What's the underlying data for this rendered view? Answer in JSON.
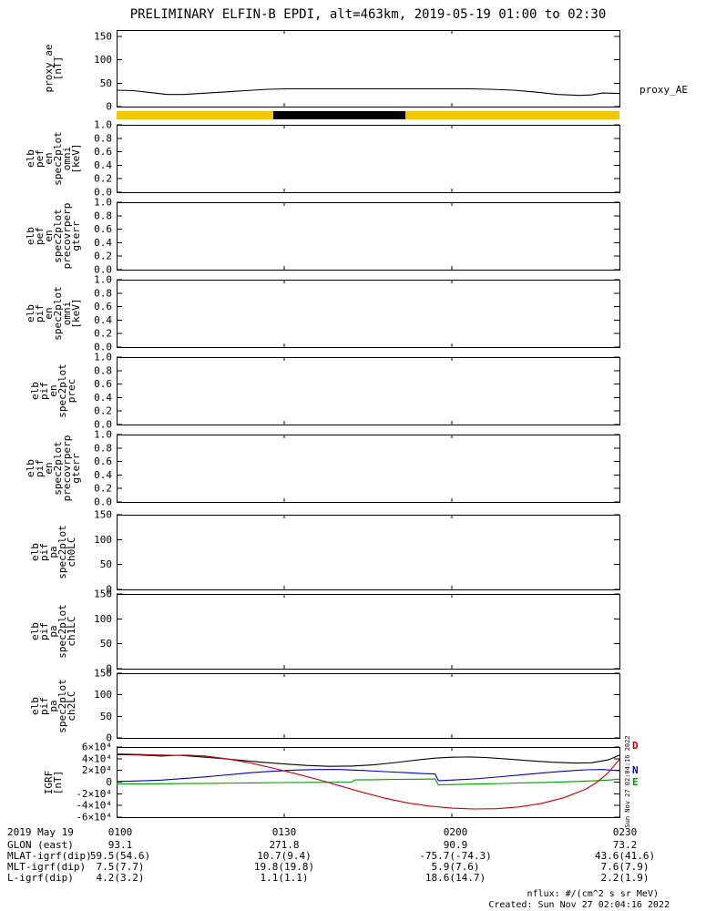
{
  "title": "PRELIMINARY ELFIN-B EPDI, alt=463km, 2019-05-19 01:00 to 02:30",
  "panels": [
    {
      "id": "proxy_ae",
      "label_lines": [
        "proxy_ae",
        "[nT]"
      ],
      "right_label": "proxy_AE",
      "yticks": [
        {
          "v": 150,
          "t": "150"
        },
        {
          "v": 100,
          "t": "100"
        },
        {
          "v": 50,
          "t": "50"
        },
        {
          "v": 0,
          "t": "0"
        }
      ]
    },
    {
      "id": "pef_omni",
      "label_lines": [
        "elb",
        "pef",
        "en",
        "spec2plot",
        "omni",
        "[keV]"
      ],
      "yticks": [
        {
          "v": 1.0,
          "t": "1.0"
        },
        {
          "v": 0.8,
          "t": "0.8"
        },
        {
          "v": 0.6,
          "t": "0.6"
        },
        {
          "v": 0.4,
          "t": "0.4"
        },
        {
          "v": 0.2,
          "t": "0.2"
        },
        {
          "v": 0.0,
          "t": "0.0"
        }
      ]
    },
    {
      "id": "pef_gterr",
      "label_lines": [
        "elb",
        "pef",
        "en",
        "spec2plot",
        "precovrperp",
        "gterr"
      ],
      "yticks": [
        {
          "v": 1.0,
          "t": "1.0"
        },
        {
          "v": 0.8,
          "t": "0.8"
        },
        {
          "v": 0.6,
          "t": "0.6"
        },
        {
          "v": 0.4,
          "t": "0.4"
        },
        {
          "v": 0.2,
          "t": "0.2"
        },
        {
          "v": 0.0,
          "t": "0.0"
        }
      ]
    },
    {
      "id": "pif_omni",
      "label_lines": [
        "elb",
        "pif",
        "en",
        "spec2plot",
        "omni",
        "[keV]"
      ],
      "yticks": [
        {
          "v": 1.0,
          "t": "1.0"
        },
        {
          "v": 0.8,
          "t": "0.8"
        },
        {
          "v": 0.6,
          "t": "0.6"
        },
        {
          "v": 0.4,
          "t": "0.4"
        },
        {
          "v": 0.2,
          "t": "0.2"
        },
        {
          "v": 0.0,
          "t": "0.0"
        }
      ]
    },
    {
      "id": "pif_prec",
      "label_lines": [
        "elb",
        "pif",
        "en",
        "spec2plot",
        "prec"
      ],
      "yticks": [
        {
          "v": 1.0,
          "t": "1.0"
        },
        {
          "v": 0.8,
          "t": "0.8"
        },
        {
          "v": 0.6,
          "t": "0.6"
        },
        {
          "v": 0.4,
          "t": "0.4"
        },
        {
          "v": 0.2,
          "t": "0.2"
        },
        {
          "v": 0.0,
          "t": "0.0"
        }
      ]
    },
    {
      "id": "pif_gterr",
      "label_lines": [
        "elb",
        "pif",
        "en",
        "spec2plot",
        "precovrperp",
        "gterr"
      ],
      "yticks": [
        {
          "v": 1.0,
          "t": "1.0"
        },
        {
          "v": 0.8,
          "t": "0.8"
        },
        {
          "v": 0.6,
          "t": "0.6"
        },
        {
          "v": 0.4,
          "t": "0.4"
        },
        {
          "v": 0.2,
          "t": "0.2"
        },
        {
          "v": 0.0,
          "t": "0.0"
        }
      ]
    },
    {
      "id": "ch0LC",
      "label_lines": [
        "elb",
        "pif",
        "pa",
        "spec2plot",
        "ch0LC"
      ],
      "yticks": [
        {
          "v": 150,
          "t": "150"
        },
        {
          "v": 100,
          "t": "100"
        },
        {
          "v": 50,
          "t": "50"
        },
        {
          "v": 0,
          "t": "0"
        }
      ]
    },
    {
      "id": "ch1LC",
      "label_lines": [
        "elb",
        "pif",
        "pa",
        "spec2plot",
        "ch1LC"
      ],
      "yticks": [
        {
          "v": 150,
          "t": "150"
        },
        {
          "v": 100,
          "t": "100"
        },
        {
          "v": 50,
          "t": "50"
        },
        {
          "v": 0,
          "t": "0"
        }
      ]
    },
    {
      "id": "ch2LC",
      "label_lines": [
        "elb",
        "pif",
        "pa",
        "spec2plot",
        "ch2LC"
      ],
      "yticks": [
        {
          "v": 150,
          "t": "150"
        },
        {
          "v": 100,
          "t": "100"
        },
        {
          "v": 50,
          "t": "50"
        },
        {
          "v": 0,
          "t": "0"
        }
      ]
    },
    {
      "id": "igrf",
      "label_lines": [
        "IGRF",
        "[nT]"
      ],
      "yticks": [
        {
          "v": 60000,
          "t": "6×10⁴"
        },
        {
          "v": 40000,
          "t": "4×10⁴"
        },
        {
          "v": 20000,
          "t": "2×10⁴"
        },
        {
          "v": 0,
          "t": "0"
        },
        {
          "v": -20000,
          "t": "-2×10⁴"
        },
        {
          "v": -40000,
          "t": "-4×10⁴"
        },
        {
          "v": -60000,
          "t": "-6×10⁴"
        }
      ]
    }
  ],
  "status_bar": {
    "segments": [
      {
        "color_name": "yellow",
        "color": "#f2c500",
        "from": 0.0,
        "to": 0.312
      },
      {
        "color_name": "black",
        "color": "#000000",
        "from": 0.312,
        "to": 0.574
      },
      {
        "color_name": "yellow",
        "color": "#f2c500",
        "from": 0.574,
        "to": 1.0
      }
    ]
  },
  "igrf_legend": [
    {
      "label": "D",
      "color": "#cc0000"
    },
    {
      "label": "N",
      "color": "#0000bb"
    },
    {
      "label": "E",
      "color": "#009900"
    }
  ],
  "chart_data": [
    {
      "type": "line",
      "panel": "proxy_ae",
      "title": "proxy_AE",
      "ylabel": "proxy_ae [nT]",
      "ylim": [
        0,
        150
      ],
      "x_unit": "minutes after 01:00 UT",
      "xlim": [
        0,
        90
      ],
      "xticks": [
        "0100",
        "0130",
        "0200",
        "0230"
      ],
      "grid": false,
      "legend_position": "right",
      "series": [
        {
          "name": "proxy_AE",
          "color": "#000000",
          "points": [
            [
              0,
              35
            ],
            [
              3,
              34
            ],
            [
              6,
              30
            ],
            [
              9,
              26
            ],
            [
              12,
              26
            ],
            [
              15,
              28
            ],
            [
              19,
              31
            ],
            [
              23,
              34
            ],
            [
              27,
              37
            ],
            [
              31,
              38
            ],
            [
              38,
              38
            ],
            [
              45,
              38
            ],
            [
              52,
              38
            ],
            [
              58,
              38
            ],
            [
              63,
              38
            ],
            [
              67,
              37
            ],
            [
              71,
              35
            ],
            [
              75,
              31
            ],
            [
              79,
              26
            ],
            [
              83,
              24
            ],
            [
              85,
              25
            ],
            [
              87,
              29
            ],
            [
              90,
              28
            ]
          ]
        }
      ]
    },
    {
      "type": "line",
      "panel": "igrf",
      "ylabel": "IGRF [nT]",
      "ylim": [
        -60000,
        60000
      ],
      "x_unit": "minutes after 01:00 UT",
      "xlim": [
        0,
        90
      ],
      "xticks": [
        "0100",
        "0130",
        "0200",
        "0230"
      ],
      "grid": false,
      "legend_position": "right",
      "series": [
        {
          "name": "B_black",
          "color": "#000000",
          "points": [
            [
              0,
              47000
            ],
            [
              4,
              46500
            ],
            [
              8,
              44500
            ],
            [
              11,
              46000
            ],
            [
              14,
              44000
            ],
            [
              18,
              41000
            ],
            [
              22,
              37500
            ],
            [
              26,
              34000
            ],
            [
              30,
              31000
            ],
            [
              34,
              28500
            ],
            [
              38,
              27000
            ],
            [
              42,
              27500
            ],
            [
              46,
              29500
            ],
            [
              50,
              33500
            ],
            [
              54,
              38000
            ],
            [
              57,
              41000
            ],
            [
              60,
              42500
            ],
            [
              63,
              43000
            ],
            [
              66,
              42000
            ],
            [
              70,
              39500
            ],
            [
              74,
              36500
            ],
            [
              78,
              34000
            ],
            [
              82,
              32500
            ],
            [
              85,
              33000
            ],
            [
              88,
              38000
            ],
            [
              90,
              46000
            ]
          ]
        },
        {
          "name": "E",
          "color": "#009900",
          "points": [
            [
              0,
              -3200
            ],
            [
              6,
              -2900
            ],
            [
              12,
              -2500
            ],
            [
              18,
              -2000
            ],
            [
              24,
              -1400
            ],
            [
              30,
              -800
            ],
            [
              36,
              -400
            ],
            [
              42,
              -100
            ],
            [
              42.7,
              3800
            ],
            [
              46,
              4100
            ],
            [
              50,
              4600
            ],
            [
              54,
              5000
            ],
            [
              57,
              5300
            ],
            [
              57.6,
              -4800
            ],
            [
              61,
              -4100
            ],
            [
              65,
              -3200
            ],
            [
              69,
              -2300
            ],
            [
              73,
              -1300
            ],
            [
              77,
              -400
            ],
            [
              81,
              700
            ],
            [
              85,
              2100
            ],
            [
              88,
              3400
            ],
            [
              90,
              5200
            ]
          ]
        },
        {
          "name": "N",
          "color": "#0000bb",
          "points": [
            [
              0,
              1000
            ],
            [
              4,
              2000
            ],
            [
              8,
              3500
            ],
            [
              12,
              6000
            ],
            [
              16,
              9000
            ],
            [
              20,
              12500
            ],
            [
              24,
              16000
            ],
            [
              28,
              18500
            ],
            [
              32,
              20500
            ],
            [
              36,
              21500
            ],
            [
              40,
              21500
            ],
            [
              44,
              20000
            ],
            [
              48,
              18000
            ],
            [
              52,
              16000
            ],
            [
              55,
              14500
            ],
            [
              57,
              13800
            ],
            [
              57.6,
              2500
            ],
            [
              60,
              3500
            ],
            [
              64,
              5500
            ],
            [
              68,
              8500
            ],
            [
              72,
              12000
            ],
            [
              76,
              15500
            ],
            [
              80,
              18500
            ],
            [
              84,
              21000
            ],
            [
              87,
              21500
            ],
            [
              90,
              19500
            ]
          ]
        },
        {
          "name": "D",
          "color": "#cc0000",
          "points": [
            [
              0,
              48500
            ],
            [
              5,
              47000
            ],
            [
              10,
              45800
            ],
            [
              13,
              46200
            ],
            [
              16,
              44500
            ],
            [
              20,
              39500
            ],
            [
              24,
              32500
            ],
            [
              28,
              24000
            ],
            [
              32,
              14500
            ],
            [
              36,
              4500
            ],
            [
              40,
              -6500
            ],
            [
              44,
              -17500
            ],
            [
              48,
              -27500
            ],
            [
              52,
              -35500
            ],
            [
              56,
              -41000
            ],
            [
              60,
              -44500
            ],
            [
              64,
              -46000
            ],
            [
              68,
              -45500
            ],
            [
              72,
              -42500
            ],
            [
              76,
              -36500
            ],
            [
              80,
              -27000
            ],
            [
              84,
              -12000
            ],
            [
              86,
              0
            ],
            [
              88,
              16000
            ],
            [
              90,
              39000
            ]
          ]
        }
      ]
    }
  ],
  "footer": {
    "rows": [
      {
        "label": "2019 May 19",
        "values": [
          "0100",
          "0130",
          "0200",
          "0230"
        ]
      },
      {
        "label": "GLON (east)",
        "values": [
          "93.1",
          "271.8",
          "90.9",
          "73.2"
        ]
      },
      {
        "label": "MLAT-igrf(dip)",
        "values": [
          "59.5(54.6)",
          "10.7(9.4)",
          "-75.7(-74.3)",
          "43.6(41.6)"
        ]
      },
      {
        "label": "MLT-igrf(dip)",
        "values": [
          "7.5(7.7)",
          "19.8(19.8)",
          "5.9(7.6)",
          "7.6(7.9)"
        ]
      },
      {
        "label": "L-igrf(dip)",
        "values": [
          "4.2(3.2)",
          "1.1(1.1)",
          "18.6(14.7)",
          "2.2(1.9)"
        ]
      }
    ]
  },
  "notes": {
    "nflux": "nflux: #/(cm^2 s sr MeV)",
    "created": "Created: Sun Nov 27 02:04:16 2022",
    "side_timestamp": "Sun Nov 27 02:04:16 2022"
  }
}
